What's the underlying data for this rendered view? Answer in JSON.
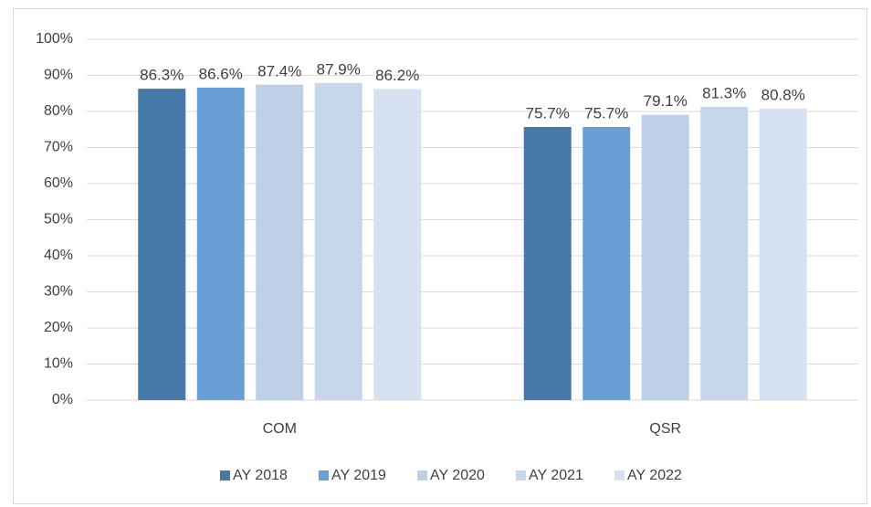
{
  "chart_data": {
    "type": "bar",
    "categories": [
      "COM",
      "QSR"
    ],
    "series": [
      {
        "name": "AY 2018",
        "color": "#4679a8",
        "values": [
          86.3,
          75.7
        ],
        "value_labels": [
          "86.3%",
          "75.7%"
        ]
      },
      {
        "name": "AY 2019",
        "color": "#689fd5",
        "values": [
          86.6,
          75.7
        ],
        "value_labels": [
          "86.6%",
          "75.7%"
        ]
      },
      {
        "name": "AY 2020",
        "color": "#bdd0e8",
        "values": [
          87.4,
          79.1
        ],
        "value_labels": [
          "87.4%",
          "79.1%"
        ]
      },
      {
        "name": "AY 2021",
        "color": "#c6d6ec",
        "values": [
          87.9,
          81.3
        ],
        "value_labels": [
          "87.9%",
          "81.3%"
        ]
      },
      {
        "name": "AY 2022",
        "color": "#d6e2f1",
        "values": [
          86.2,
          80.8
        ],
        "value_labels": [
          "86.2%",
          "80.8%"
        ]
      }
    ],
    "ylim": [
      0,
      100
    ],
    "yticks": [
      {
        "value": 0,
        "label": "0%"
      },
      {
        "value": 10,
        "label": "10%"
      },
      {
        "value": 20,
        "label": "20%"
      },
      {
        "value": 30,
        "label": "30%"
      },
      {
        "value": 40,
        "label": "40%"
      },
      {
        "value": 50,
        "label": "50%"
      },
      {
        "value": 60,
        "label": "60%"
      },
      {
        "value": 70,
        "label": "70%"
      },
      {
        "value": 80,
        "label": "80%"
      },
      {
        "value": 90,
        "label": "90%"
      },
      {
        "value": 100,
        "label": "100%"
      }
    ],
    "grid": true,
    "legend": "bottom"
  }
}
